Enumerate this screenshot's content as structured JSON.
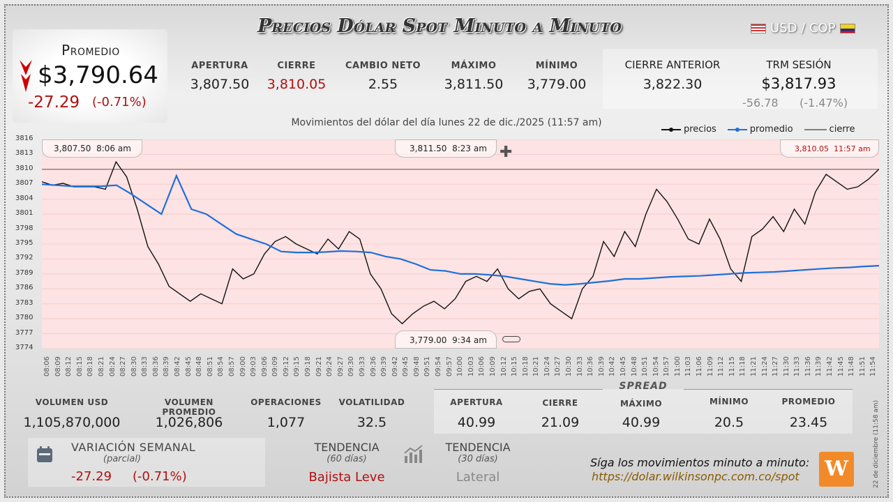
{
  "title": "Precios Dólar Spot Minuto a Minuto",
  "pair": "USD / COP",
  "average": {
    "label": "Promedio",
    "value": "$3,790.64",
    "change": "-27.29",
    "change_pct": "(-0.71%)"
  },
  "stats_top": [
    {
      "label": "APERTURA",
      "value": "3,807.50",
      "color": "#222"
    },
    {
      "label": "CIERRE",
      "value": "3,810.05",
      "color": "#b01010"
    },
    {
      "label": "CAMBIO NETO",
      "value": "2.55",
      "color": "#222"
    },
    {
      "label": "MÁXIMO",
      "value": "3,811.50",
      "color": "#222"
    },
    {
      "label": "MÍNIMO",
      "value": "3,779.00",
      "color": "#222"
    }
  ],
  "prev_close": {
    "label": "CIERRE ANTERIOR",
    "value": "3,822.30"
  },
  "trm": {
    "label": "TRM SESIÓN",
    "value": "$3,817.93",
    "change": "-56.78",
    "change_pct": "(-1.47%)"
  },
  "chart_subtitle": "Movimientos del dólar del día lunes 22 de dic./2025 (11:57 am)",
  "legend": [
    "precios",
    "promedio",
    "cierre"
  ],
  "annotations": {
    "open": {
      "value": "3,807.50",
      "time": "8:06 am"
    },
    "max": {
      "value": "3,811.50",
      "time": "8:23 am"
    },
    "last": {
      "value": "3,810.05",
      "time": "11:57 am"
    },
    "min": {
      "value": "3,779.00",
      "time": "9:34 am"
    }
  },
  "chart_data": {
    "type": "line",
    "ylim": [
      3774,
      3816
    ],
    "yticks": [
      "3816",
      "3813",
      "3810",
      "3807",
      "3804",
      "3801",
      "3798",
      "3795",
      "3792",
      "3789",
      "3786",
      "3783",
      "3780",
      "3777",
      "3774"
    ],
    "xticks": [
      "08:06",
      "08:09",
      "08:12",
      "08:15",
      "08:18",
      "08:21",
      "08:24",
      "08:27",
      "08:30",
      "08:33",
      "08:36",
      "08:39",
      "08:42",
      "08:45",
      "08:48",
      "08:51",
      "08:54",
      "08:57",
      "09:00",
      "09:03",
      "09:06",
      "09:09",
      "09:12",
      "09:15",
      "09:18",
      "09:21",
      "09:24",
      "09:27",
      "09:30",
      "09:33",
      "09:36",
      "09:39",
      "09:42",
      "09:45",
      "09:48",
      "09:51",
      "09:54",
      "09:57",
      "10:00",
      "10:03",
      "10:06",
      "10:09",
      "10:12",
      "10:15",
      "10:18",
      "10:21",
      "10:24",
      "10:27",
      "10:30",
      "10:33",
      "10:36",
      "10:39",
      "10:42",
      "10:45",
      "10:48",
      "10:51",
      "10:54",
      "10:57",
      "11:00",
      "11:03",
      "11:06",
      "11:09",
      "11:12",
      "11:15",
      "11:18",
      "11:21",
      "11:24",
      "11:27",
      "11:30",
      "11:33",
      "11:36",
      "11:39",
      "11:42",
      "11:45",
      "11:48",
      "11:51",
      "11:54"
    ],
    "cierre_ref": 3810,
    "series": [
      {
        "name": "precios",
        "color": "#111",
        "values": [
          3807.5,
          3806.8,
          3807.2,
          3806.5,
          3806.5,
          3806.5,
          3806.0,
          3811.5,
          3808.5,
          3802.0,
          3794.5,
          3791.0,
          3786.5,
          3785.0,
          3783.5,
          3785.0,
          3784.0,
          3783.0,
          3790.0,
          3788.0,
          3789.0,
          3793.0,
          3795.5,
          3796.5,
          3795.0,
          3794.0,
          3793.0,
          3796.0,
          3794.0,
          3797.5,
          3796.0,
          3789.0,
          3786.0,
          3781.0,
          3779.0,
          3781.0,
          3782.5,
          3783.5,
          3782.0,
          3784.0,
          3787.5,
          3788.5,
          3787.5,
          3790.0,
          3786.0,
          3784.0,
          3785.5,
          3786.0,
          3783.0,
          3781.5,
          3780.0,
          3786.0,
          3788.5,
          3795.5,
          3792.5,
          3797.5,
          3794.5,
          3801.0,
          3806.0,
          3803.5,
          3800.0,
          3796.0,
          3795.0,
          3800.0,
          3796.0,
          3790.0,
          3787.5,
          3796.5,
          3798.0,
          3800.5,
          3797.5,
          3802.0,
          3799.0,
          3805.5,
          3809.0,
          3807.5,
          3806.0,
          3806.5,
          3808.0,
          3810.05
        ]
      },
      {
        "name": "promedio",
        "color": "#1e6fd9",
        "values": [
          3807.0,
          3806.8,
          3806.6,
          3806.6,
          3806.6,
          3806.8,
          3805.0,
          3803.0,
          3801.0,
          3808.7,
          3802.0,
          3801.0,
          3799.0,
          3797.0,
          3796.0,
          3795.0,
          3793.5,
          3793.3,
          3793.3,
          3793.4,
          3793.6,
          3793.5,
          3793.3,
          3792.5,
          3792.0,
          3791.0,
          3789.8,
          3789.6,
          3789.0,
          3789.0,
          3788.8,
          3788.5,
          3788.0,
          3787.5,
          3787.0,
          3786.8,
          3787.0,
          3787.3,
          3787.6,
          3788.0,
          3788.0,
          3788.2,
          3788.4,
          3788.5,
          3788.6,
          3788.8,
          3789.0,
          3789.2,
          3789.3,
          3789.4,
          3789.6,
          3789.8,
          3790.0,
          3790.2,
          3790.3,
          3790.5,
          3790.64
        ]
      }
    ]
  },
  "stats_bottom": [
    {
      "label": "VOLUMEN USD",
      "value": "1,105,870,000"
    },
    {
      "label": "VOLUMEN PROMEDIO",
      "value": "1,026,806"
    },
    {
      "label": "OPERACIONES",
      "value": "1,077"
    },
    {
      "label": "VOLATILIDAD",
      "value": "32.5"
    }
  ],
  "spread": {
    "title": "SPREAD",
    "items": [
      {
        "label": "APERTURA",
        "value": "40.99"
      },
      {
        "label": "CIERRE",
        "value": "21.09"
      },
      {
        "label": "MÁXIMO",
        "value": "40.99"
      },
      {
        "label": "MÍNIMO",
        "value": "20.5"
      },
      {
        "label": "PROMEDIO",
        "value": "23.45"
      }
    ]
  },
  "weekly": {
    "label": "VARIACIÓN SEMANAL",
    "sub": "(parcial)",
    "change": "-27.29",
    "change_pct": "(-0.71%)"
  },
  "trend60": {
    "label": "TENDENCIA",
    "sub": "(60 días)",
    "value": "Bajista Leve"
  },
  "trend30": {
    "label": "TENDENCIA",
    "sub": "(30 días)",
    "value": "Lateral"
  },
  "footer": {
    "text": "Síga los movimientos minuto a minuto:",
    "link": "https://dolar.wilkinsonpc.com.co/spot",
    "stamp": "22 de diciembre (11:58 am)"
  }
}
